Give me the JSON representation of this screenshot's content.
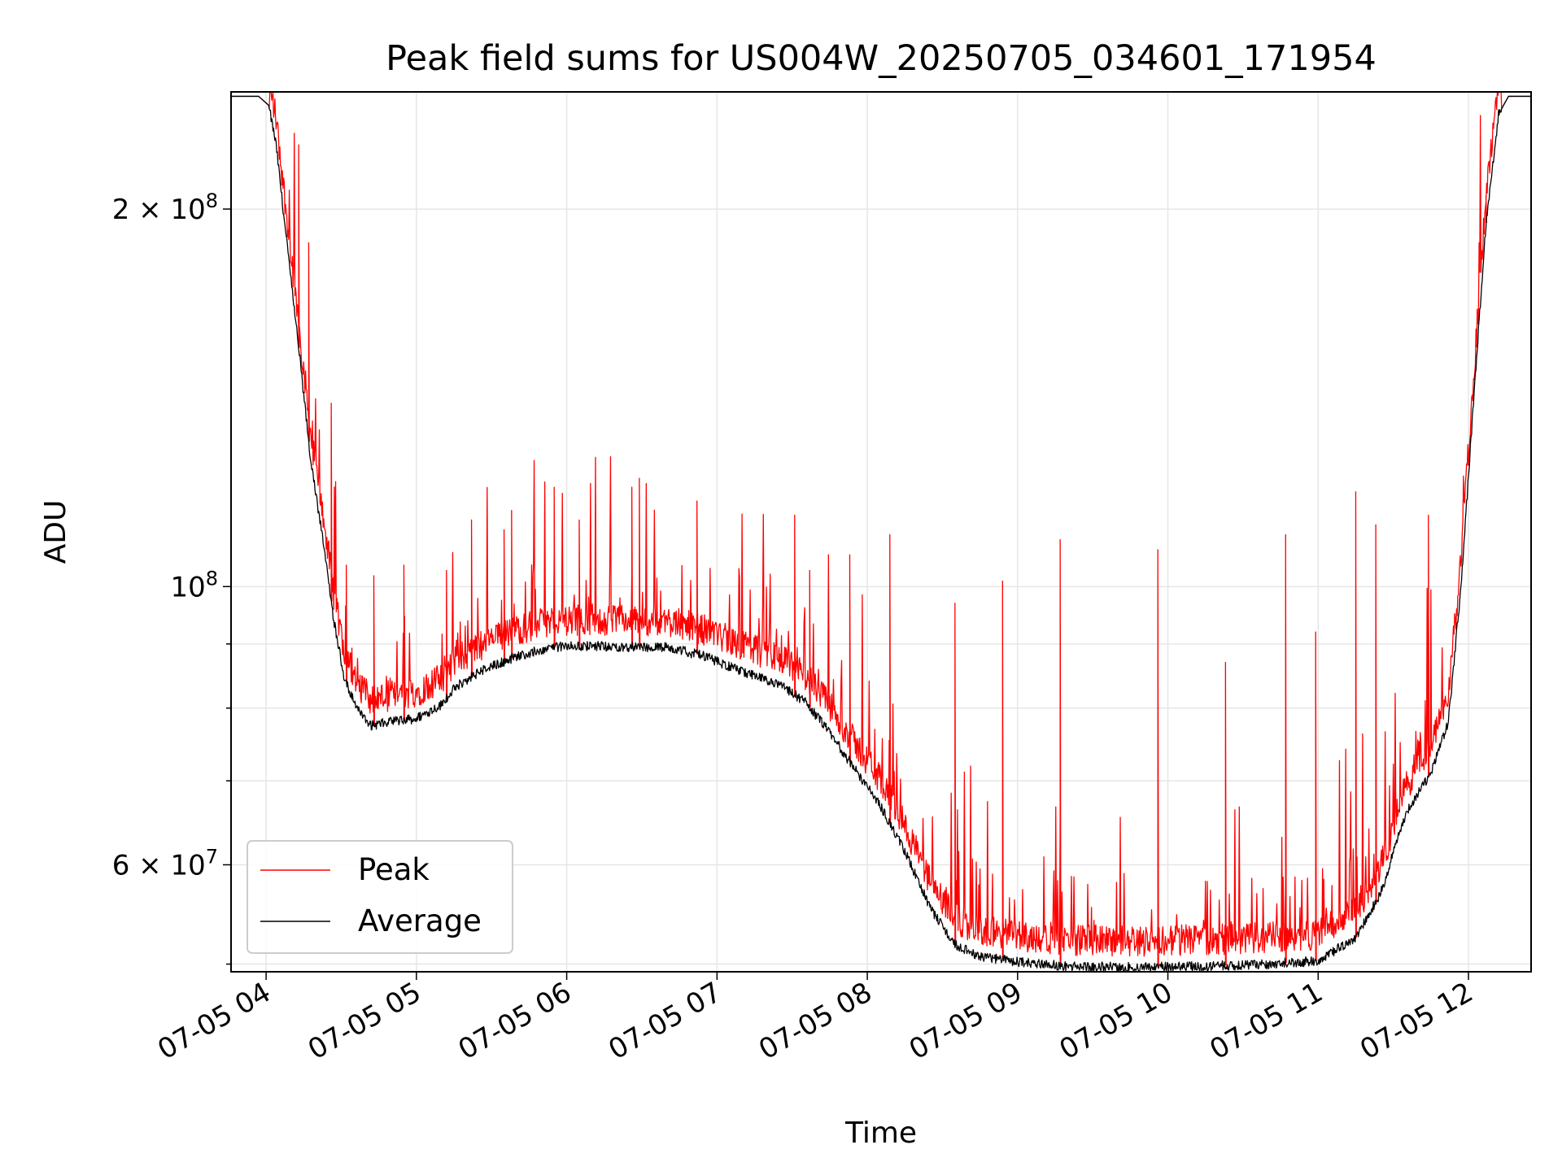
{
  "chart_data": {
    "type": "line",
    "title": "Peak field sums for US004W_20250705_034601_171954",
    "xlabel": "Time",
    "ylabel": "ADU",
    "yscale": "log",
    "ylim": [
      49300000,
      248000000
    ],
    "xlim": [
      "07-05 03:46",
      "07-05 12:25"
    ],
    "x_ticks": [
      "07-05 04",
      "07-05 05",
      "07-05 06",
      "07-05 07",
      "07-05 08",
      "07-05 09",
      "07-05 10",
      "07-05 11",
      "07-05 12"
    ],
    "y_ticks": [
      {
        "value": 200000000,
        "mantissa": "2",
        "exponent": "8"
      },
      {
        "value": 100000000,
        "mantissa": "",
        "exponent": "8"
      },
      {
        "value": 60000000,
        "mantissa": "6",
        "exponent": "7"
      }
    ],
    "grid": true,
    "legend": {
      "position": "bottom-left"
    },
    "series": [
      {
        "name": "Peak",
        "color": "#ff0000",
        "description": "Peak values follow the average baseline with frequent upward spikes",
        "spikes": [
          {
            "t": "07-05 04:13",
            "v": 225000000
          },
          {
            "t": "07-05 04:17",
            "v": 188000000
          },
          {
            "t": "07-05 04:26",
            "v": 140000000
          },
          {
            "t": "07-05 04:32",
            "v": 104000000
          },
          {
            "t": "07-05 04:43",
            "v": 102000000
          },
          {
            "t": "07-05 04:55",
            "v": 104000000
          },
          {
            "t": "07-05 05:12",
            "v": 103000000
          },
          {
            "t": "07-05 05:22",
            "v": 113000000
          },
          {
            "t": "07-05 05:35",
            "v": 111000000
          },
          {
            "t": "07-05 05:38",
            "v": 115000000
          },
          {
            "t": "07-05 05:55",
            "v": 120000000
          },
          {
            "t": "07-05 06:05",
            "v": 113000000
          },
          {
            "t": "07-05 06:26",
            "v": 120000000
          },
          {
            "t": "07-05 06:29",
            "v": 122000000
          },
          {
            "t": "07-05 06:52",
            "v": 117000000
          },
          {
            "t": "07-05 07:31",
            "v": 114000000
          },
          {
            "t": "07-05 07:37",
            "v": 103000000
          },
          {
            "t": "07-05 07:53",
            "v": 106000000
          },
          {
            "t": "07-05 08:09",
            "v": 110000000
          },
          {
            "t": "07-05 08:35",
            "v": 97000000
          },
          {
            "t": "07-05 08:54",
            "v": 101000000
          },
          {
            "t": "07-05 09:17",
            "v": 109000000
          },
          {
            "t": "07-05 09:56",
            "v": 107000000
          },
          {
            "t": "07-05 10:23",
            "v": 87000000
          },
          {
            "t": "07-05 10:47",
            "v": 110000000
          },
          {
            "t": "07-05 10:59",
            "v": 92000000
          },
          {
            "t": "07-05 11:15",
            "v": 119000000
          },
          {
            "t": "07-05 11:23",
            "v": 112000000
          },
          {
            "t": "07-05 11:44",
            "v": 114000000
          },
          {
            "t": "07-05 12:07",
            "v": 205000000
          }
        ]
      },
      {
        "name": "Average",
        "color": "#000000",
        "points": [
          {
            "t": "07-05 03:46",
            "v": 246000000
          },
          {
            "t": "07-05 03:57",
            "v": 246000000
          },
          {
            "t": "07-05 04:01",
            "v": 242000000
          },
          {
            "t": "07-05 04:04",
            "v": 225000000
          },
          {
            "t": "07-05 04:08",
            "v": 190000000
          },
          {
            "t": "07-05 04:13",
            "v": 155000000
          },
          {
            "t": "07-05 04:18",
            "v": 125000000
          },
          {
            "t": "07-05 04:23",
            "v": 108000000
          },
          {
            "t": "07-05 04:27",
            "v": 94000000
          },
          {
            "t": "07-05 04:31",
            "v": 85000000
          },
          {
            "t": "07-05 04:36",
            "v": 80000000
          },
          {
            "t": "07-05 04:42",
            "v": 77500000
          },
          {
            "t": "07-05 04:50",
            "v": 78000000
          },
          {
            "t": "07-05 05:00",
            "v": 78500000
          },
          {
            "t": "07-05 05:10",
            "v": 80500000
          },
          {
            "t": "07-05 05:15",
            "v": 83000000
          },
          {
            "t": "07-05 05:25",
            "v": 85500000
          },
          {
            "t": "07-05 05:40",
            "v": 88000000
          },
          {
            "t": "07-05 05:55",
            "v": 89500000
          },
          {
            "t": "07-05 06:10",
            "v": 89700000
          },
          {
            "t": "07-05 06:25",
            "v": 89500000
          },
          {
            "t": "07-05 06:40",
            "v": 89500000
          },
          {
            "t": "07-05 06:55",
            "v": 88000000
          },
          {
            "t": "07-05 07:10",
            "v": 85500000
          },
          {
            "t": "07-05 07:25",
            "v": 83500000
          },
          {
            "t": "07-05 07:35",
            "v": 81000000
          },
          {
            "t": "07-05 07:45",
            "v": 76500000
          },
          {
            "t": "07-05 07:55",
            "v": 71500000
          },
          {
            "t": "07-05 08:05",
            "v": 67000000
          },
          {
            "t": "07-05 08:15",
            "v": 61500000
          },
          {
            "t": "07-05 08:25",
            "v": 55500000
          },
          {
            "t": "07-05 08:35",
            "v": 51800000
          },
          {
            "t": "07-05 08:45",
            "v": 50700000
          },
          {
            "t": "07-05 09:00",
            "v": 50200000
          },
          {
            "t": "07-05 09:20",
            "v": 49800000
          },
          {
            "t": "07-05 09:45",
            "v": 49700000
          },
          {
            "t": "07-05 10:15",
            "v": 49800000
          },
          {
            "t": "07-05 10:40",
            "v": 50000000
          },
          {
            "t": "07-05 11:00",
            "v": 50300000
          },
          {
            "t": "07-05 11:15",
            "v": 52500000
          },
          {
            "t": "07-05 11:25",
            "v": 57000000
          },
          {
            "t": "07-05 11:35",
            "v": 66000000
          },
          {
            "t": "07-05 11:45",
            "v": 71000000
          },
          {
            "t": "07-05 11:52",
            "v": 78000000
          },
          {
            "t": "07-05 11:57",
            "v": 100000000
          },
          {
            "t": "07-05 12:02",
            "v": 140000000
          },
          {
            "t": "07-05 12:07",
            "v": 195000000
          },
          {
            "t": "07-05 12:12",
            "v": 238000000
          },
          {
            "t": "07-05 12:16",
            "v": 246000000
          },
          {
            "t": "07-05 12:25",
            "v": 246000000
          }
        ]
      }
    ]
  }
}
